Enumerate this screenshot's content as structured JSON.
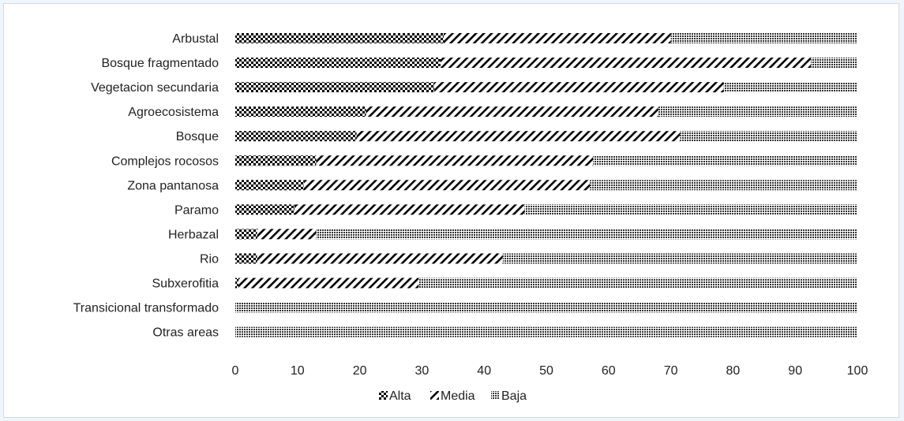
{
  "chart_data": {
    "type": "bar",
    "orientation": "horizontal",
    "stacked": true,
    "title": "",
    "xlabel": "",
    "ylabel": "",
    "categories": [
      "Arbustal",
      "Bosque fragmentado",
      "Vegetacion secundaria",
      "Agroecosistema",
      "Bosque",
      "Complejos rocosos",
      "Zona pantanosa",
      "Paramo",
      "Herbazal",
      "Rio",
      "Subxerofitia",
      "Transicional transformado",
      "Otras areas"
    ],
    "series": [
      {
        "name": "Alta",
        "pattern": "checker",
        "values": [
          33.5,
          33,
          32,
          21,
          19.5,
          13,
          11,
          9.5,
          3.5,
          3.5,
          0.5,
          0,
          0
        ]
      },
      {
        "name": "Media",
        "pattern": "diagonal",
        "values": [
          36.5,
          59.5,
          46.5,
          47,
          52,
          44.5,
          46,
          37,
          9.5,
          39.5,
          29,
          0,
          0
        ]
      },
      {
        "name": "Baja",
        "pattern": "dots",
        "values": [
          30,
          7.5,
          21.5,
          32,
          28.5,
          42.5,
          43,
          53.5,
          87,
          57,
          70.5,
          100,
          100
        ]
      }
    ],
    "xlim": [
      0,
      100
    ],
    "xticks": [
      0,
      10,
      20,
      30,
      40,
      50,
      60,
      70,
      80,
      90,
      100
    ],
    "grid": false,
    "legend_position": "bottom"
  }
}
